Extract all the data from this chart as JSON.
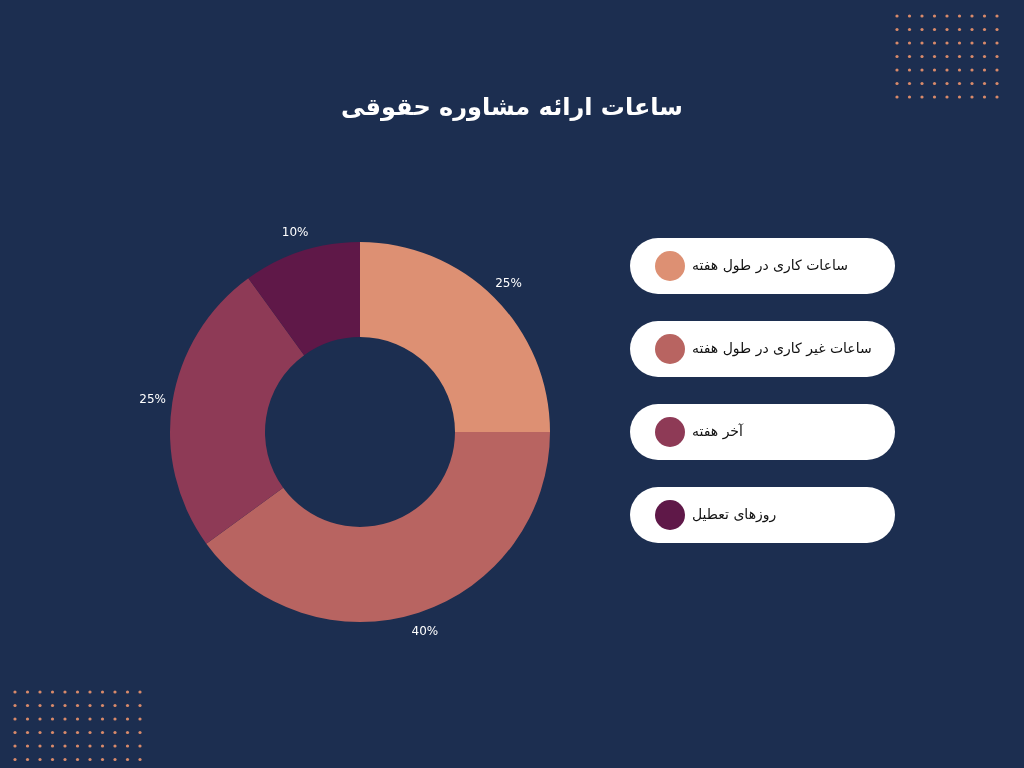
{
  "chart_data": {
    "type": "donut",
    "title": "ساعات ارائه مشاوره حقوقی",
    "categories": [
      "ساعات کاری در طول هفته",
      "ساعات غیر کاری در طول هفته",
      "آخر هفته",
      "روزهای تعطیل"
    ],
    "values": [
      25,
      40,
      25,
      10
    ],
    "value_labels": [
      "25%",
      "40%",
      "25%",
      "10%"
    ],
    "colors": [
      "#dd9073",
      "#b86461",
      "#8e3a56",
      "#5f1848"
    ],
    "legend": "right"
  }
}
